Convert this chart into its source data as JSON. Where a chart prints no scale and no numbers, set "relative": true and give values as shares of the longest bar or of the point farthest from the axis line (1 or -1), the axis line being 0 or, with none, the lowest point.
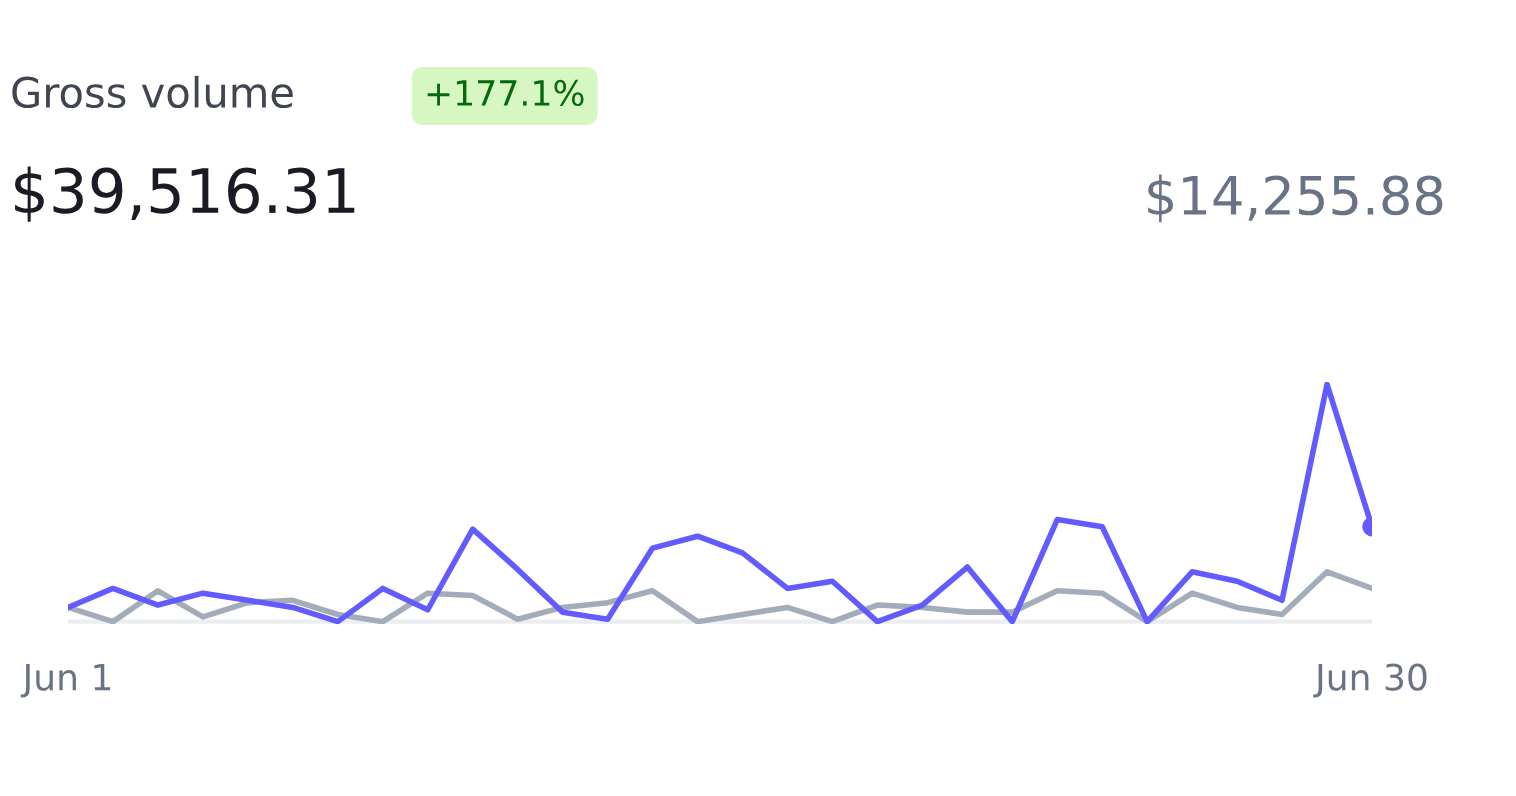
{
  "chart_data": {
    "type": "line",
    "title": "Gross volume",
    "relative": true,
    "annotations": [
      "+177.1%",
      "$39,516.31",
      "$14,255.88"
    ],
    "categories": [
      "Jun 1",
      null,
      null,
      null,
      null,
      null,
      null,
      null,
      null,
      null,
      null,
      null,
      null,
      null,
      null,
      null,
      null,
      null,
      null,
      null,
      null,
      null,
      null,
      null,
      null,
      null,
      null,
      null,
      null,
      "Jun 30"
    ],
    "series": [
      {
        "color": "#a3acb9",
        "values": [
          0.06,
          0,
          0.13,
          0.02,
          0.08,
          0.09,
          0.03,
          0,
          0.12,
          0.11,
          0.01,
          0.06,
          0.08,
          0.13,
          0,
          0.03,
          0.06,
          0,
          0.07,
          0.06,
          0.04,
          0.04,
          0.13,
          0.12,
          0,
          0.12,
          0.06,
          0.03,
          0.21,
          0.14
        ]
      },
      {
        "color": "#635bff",
        "values": [
          0.06,
          0.14,
          0.07,
          0.12,
          0.09,
          0.06,
          0,
          0.14,
          0.05,
          0.39,
          0.22,
          0.04,
          0.01,
          0.31,
          0.36,
          0.29,
          0.14,
          0.17,
          0,
          0.07,
          0.23,
          0,
          0.43,
          0.4,
          0,
          0.21,
          0.17,
          0.09,
          1,
          0.4
        ]
      }
    ],
    "grid": false,
    "legend": false,
    "marker": "none",
    "line_style": "solid"
  }
}
